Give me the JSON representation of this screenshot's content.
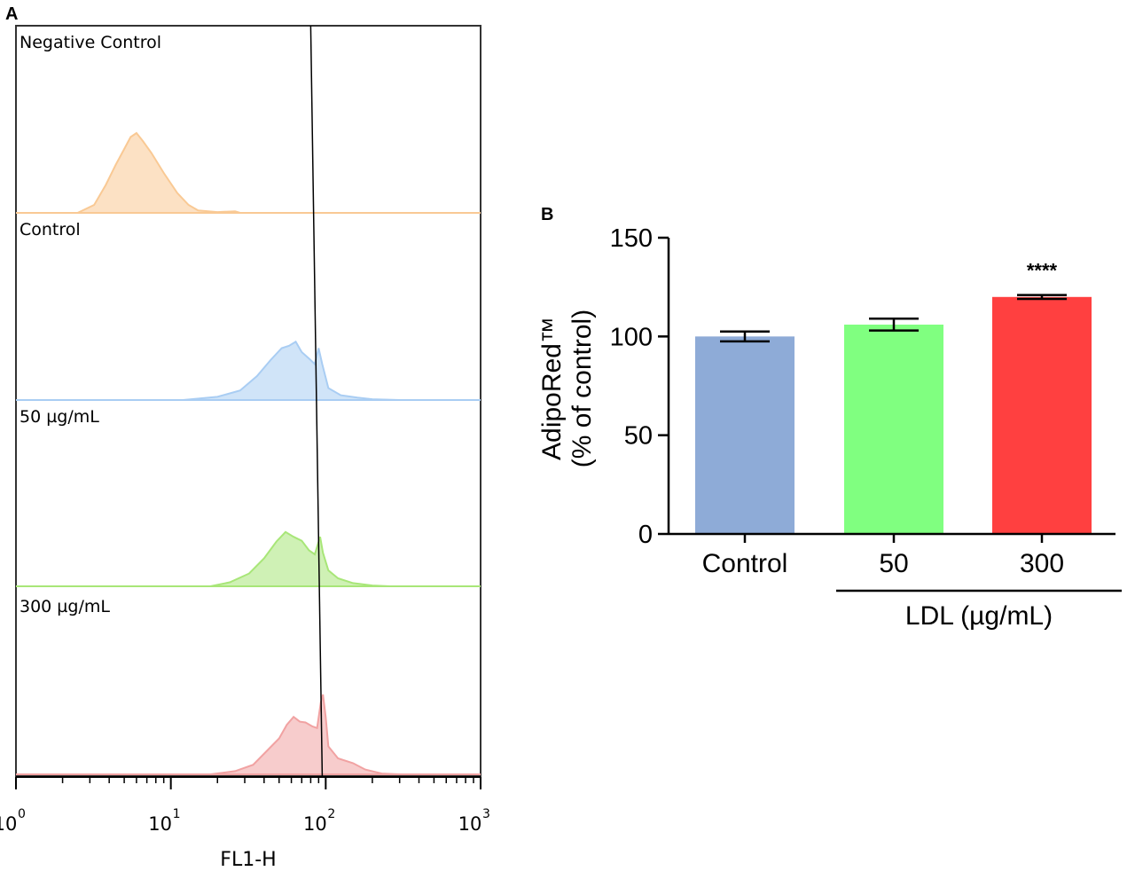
{
  "chart_data": [
    {
      "panel": "A",
      "type": "histogram",
      "xscale": "log",
      "xlim": [
        1,
        1000
      ],
      "xlabel": "FL1-H",
      "xticks": [
        {
          "value": 1,
          "base": "10",
          "exp": "0"
        },
        {
          "value": 10,
          "base": "10",
          "exp": "1"
        },
        {
          "value": 100,
          "base": "10",
          "exp": "2"
        },
        {
          "value": 1000,
          "base": "10",
          "exp": "3"
        }
      ],
      "gate_x": 80,
      "gate_x_bottom": 95,
      "series": [
        {
          "name": "Negative Control",
          "color": "#f9c994",
          "points": [
            [
              2.5,
              0
            ],
            [
              3.2,
              0.1
            ],
            [
              3.8,
              0.35
            ],
            [
              4.4,
              0.6
            ],
            [
              5.0,
              0.8
            ],
            [
              5.5,
              0.95
            ],
            [
              6.0,
              1.0
            ],
            [
              6.6,
              0.9
            ],
            [
              7.5,
              0.75
            ],
            [
              9.0,
              0.5
            ],
            [
              11,
              0.25
            ],
            [
              13,
              0.1
            ],
            [
              15,
              0.03
            ],
            [
              20,
              0.01
            ],
            [
              26,
              0.02
            ],
            [
              28,
              0
            ]
          ]
        },
        {
          "name": "Control",
          "color": "#a9cdf3",
          "points": [
            [
              12,
              0
            ],
            [
              20,
              0.04
            ],
            [
              28,
              0.12
            ],
            [
              36,
              0.3
            ],
            [
              44,
              0.5
            ],
            [
              52,
              0.65
            ],
            [
              58,
              0.68
            ],
            [
              64,
              0.73
            ],
            [
              70,
              0.6
            ],
            [
              78,
              0.52
            ],
            [
              85,
              0.45
            ],
            [
              90,
              0.65
            ],
            [
              95,
              0.45
            ],
            [
              104,
              0.15
            ],
            [
              125,
              0.06
            ],
            [
              160,
              0.03
            ],
            [
              200,
              0.01
            ],
            [
              300,
              0
            ]
          ]
        },
        {
          "name": "50 µg/mL",
          "color": "#a8e678",
          "points": [
            [
              18,
              0
            ],
            [
              24,
              0.05
            ],
            [
              32,
              0.16
            ],
            [
              40,
              0.35
            ],
            [
              48,
              0.56
            ],
            [
              55,
              0.68
            ],
            [
              62,
              0.62
            ],
            [
              70,
              0.57
            ],
            [
              78,
              0.45
            ],
            [
              85,
              0.4
            ],
            [
              92,
              0.62
            ],
            [
              96,
              0.42
            ],
            [
              104,
              0.2
            ],
            [
              120,
              0.1
            ],
            [
              150,
              0.04
            ],
            [
              200,
              0.01
            ],
            [
              260,
              0
            ]
          ]
        },
        {
          "name": "300 µg/mL",
          "color": "#f1a2a2",
          "points": [
            [
              18,
              0
            ],
            [
              26,
              0.04
            ],
            [
              34,
              0.12
            ],
            [
              42,
              0.3
            ],
            [
              50,
              0.45
            ],
            [
              56,
              0.62
            ],
            [
              62,
              0.72
            ],
            [
              68,
              0.66
            ],
            [
              74,
              0.65
            ],
            [
              82,
              0.6
            ],
            [
              88,
              0.58
            ],
            [
              93,
              0.9
            ],
            [
              96,
              1.0
            ],
            [
              100,
              0.72
            ],
            [
              104,
              0.35
            ],
            [
              120,
              0.2
            ],
            [
              150,
              0.14
            ],
            [
              180,
              0.06
            ],
            [
              230,
              0.01
            ],
            [
              300,
              0
            ]
          ]
        }
      ]
    },
    {
      "panel": "B",
      "type": "bar",
      "categories": [
        "Control",
        "50",
        "300"
      ],
      "values": [
        100,
        106,
        120
      ],
      "errors": [
        2.5,
        3,
        1
      ],
      "colors": [
        "#8eabd7",
        "#80ff80",
        "#ff4040"
      ],
      "significance": [
        "",
        "",
        "****"
      ],
      "ylim": [
        0,
        150
      ],
      "yticks": [
        0,
        50,
        100,
        150
      ],
      "ylabel_line1": "AdipoRed™",
      "ylabel_line2": "(% of control)",
      "group_label": "LDL (µg/mL)"
    }
  ]
}
